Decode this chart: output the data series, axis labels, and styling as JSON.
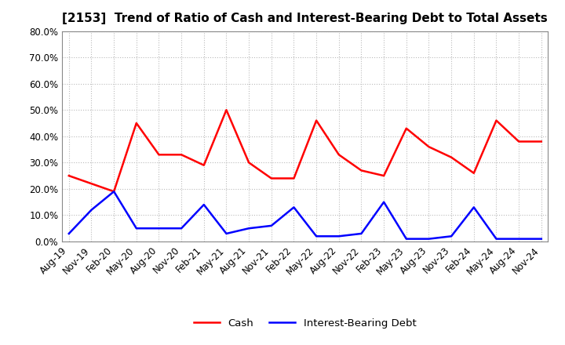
{
  "title": "[2153]  Trend of Ratio of Cash and Interest-Bearing Debt to Total Assets",
  "x_labels": [
    "Aug-19",
    "Nov-19",
    "Feb-20",
    "May-20",
    "Aug-20",
    "Nov-20",
    "Feb-21",
    "May-21",
    "Aug-21",
    "Nov-21",
    "Feb-22",
    "May-22",
    "Aug-22",
    "Nov-22",
    "Feb-23",
    "May-23",
    "Aug-23",
    "Nov-23",
    "Feb-24",
    "May-24",
    "Aug-24",
    "Nov-24"
  ],
  "cash": [
    25.0,
    22.0,
    19.0,
    45.0,
    33.0,
    33.0,
    29.0,
    50.0,
    30.0,
    24.0,
    24.0,
    46.0,
    33.0,
    27.0,
    25.0,
    43.0,
    36.0,
    32.0,
    26.0,
    46.0,
    38.0,
    38.0
  ],
  "ibd": [
    3.0,
    12.0,
    19.0,
    5.0,
    5.0,
    5.0,
    14.0,
    3.0,
    5.0,
    6.0,
    13.0,
    2.0,
    2.0,
    3.0,
    15.0,
    1.0,
    1.0,
    2.0,
    13.0,
    1.0,
    1.0,
    1.0
  ],
  "cash_color": "#ff0000",
  "ibd_color": "#0000ff",
  "ylim": [
    0,
    80
  ],
  "yticks": [
    0,
    10,
    20,
    30,
    40,
    50,
    60,
    70,
    80
  ],
  "background_color": "#ffffff",
  "grid_color": "#bbbbbb",
  "legend_cash": "Cash",
  "legend_ibd": "Interest-Bearing Debt",
  "title_fontsize": 11,
  "tick_label_rotation": 45,
  "tick_fontsize": 8.5,
  "linewidth": 1.8
}
